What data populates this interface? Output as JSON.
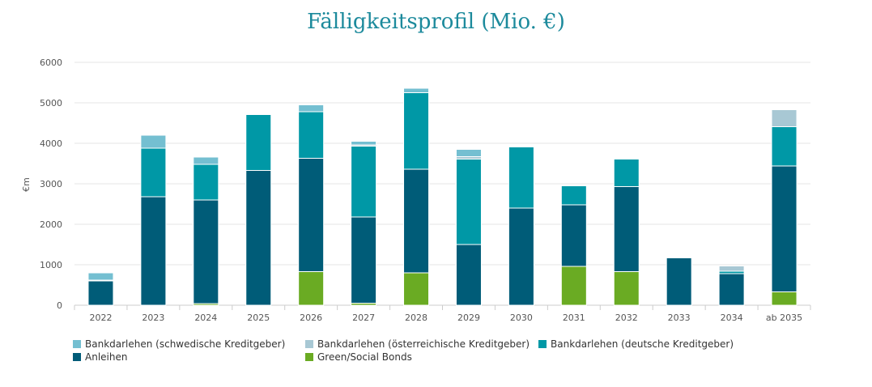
{
  "chart_data": {
    "type": "bar",
    "stacked": true,
    "title": "Fälligkeitsprofil (Mio. €)",
    "ylabel": "€m",
    "xlabel": "",
    "ylim": [
      0,
      6000
    ],
    "yticks": [
      0,
      1000,
      2000,
      3000,
      4000,
      5000,
      6000
    ],
    "grid": true,
    "legend_position": "bottom",
    "categories": [
      "2022",
      "2023",
      "2024",
      "2025",
      "2026",
      "2027",
      "2028",
      "2029",
      "2030",
      "2031",
      "2032",
      "2033",
      "2034",
      "ab 2035"
    ],
    "series": [
      {
        "name": "Green/Social Bonds",
        "color": "#6aab23",
        "values": [
          0,
          0,
          40,
          0,
          830,
          50,
          800,
          0,
          0,
          960,
          830,
          0,
          0,
          330
        ]
      },
      {
        "name": "Anleihen",
        "color": "#005c78",
        "values": [
          600,
          2680,
          2560,
          3330,
          2800,
          2130,
          2560,
          1500,
          2400,
          1520,
          2100,
          1170,
          780,
          3110
        ]
      },
      {
        "name": "Bankdarlehen (deutsche Kreditgeber)",
        "color": "#0098a6",
        "values": [
          20,
          1200,
          880,
          1380,
          1150,
          1750,
          1890,
          2110,
          1510,
          470,
          680,
          0,
          60,
          970
        ]
      },
      {
        "name": "Bankdarlehen (österreichische Kreditgeber)",
        "color": "#a8c8d4",
        "values": [
          0,
          0,
          0,
          0,
          0,
          30,
          0,
          60,
          0,
          0,
          0,
          0,
          130,
          420
        ]
      },
      {
        "name": "Bankdarlehen (schwedische Kreditgeber)",
        "color": "#74bfd1",
        "values": [
          180,
          320,
          180,
          0,
          170,
          90,
          110,
          180,
          0,
          0,
          0,
          0,
          0,
          20
        ]
      }
    ]
  },
  "legend": [
    {
      "label": "Bankdarlehen (schwedische Kreditgeber)",
      "color": "#74bfd1"
    },
    {
      "label": "Bankdarlehen (österreichische Kreditgeber)",
      "color": "#a8c8d4"
    },
    {
      "label": "Bankdarlehen (deutsche Kreditgeber)",
      "color": "#0098a6"
    },
    {
      "label": "Anleihen",
      "color": "#005c78"
    },
    {
      "label": "Green/Social Bonds",
      "color": "#6aab23"
    }
  ]
}
